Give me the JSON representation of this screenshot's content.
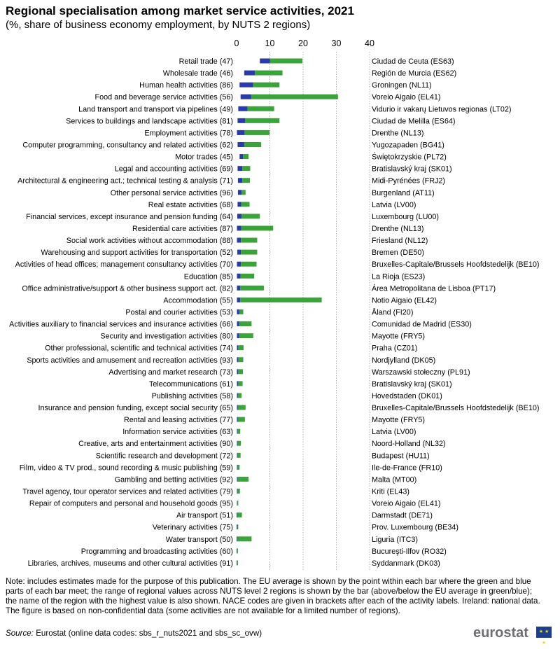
{
  "title": "Regional specialisation among market service activities, 2021",
  "subtitle": "(%, share of business economy employment,  by NUTS 2 regions)",
  "note": "Note: includes estimates made for the purpose of this publication. The EU average is shown by the point within each bar where the green and blue parts of each bar meet; the range of regional values across NUTS level 2 regions is shown by the bar (above/below the EU average in green/blue); the name of the region with the highest value is also shown. NACE codes are given in brackets after each of the activity labels. Ireland: national data. The figure is based on non-confidential data (some activities are not available for a limited number of regions).",
  "source_label": "Source:",
  "source_text": " Eurostat (online data codes: sbs_r_nuts2021 and sbs_sc_ovw)",
  "logo_text": "eurostat",
  "colors": {
    "below_avg": "#2a3aa8",
    "above_avg": "#3aa43a",
    "grid": "#9a9a9a"
  },
  "chart_data": {
    "type": "bar",
    "orientation": "horizontal",
    "xlim": [
      0,
      40
    ],
    "xticks": [
      "0",
      "10",
      "20",
      "30",
      "40"
    ],
    "grid": "vertical dotted",
    "series": [
      {
        "name": "below EU average",
        "color": "#2a3aa8"
      },
      {
        "name": "above EU average",
        "color": "#3aa43a"
      }
    ],
    "rows": [
      {
        "label": "Retail trade (47)",
        "min": 7.0,
        "avg": 10.0,
        "max": 19.8,
        "region": "Ciudad de Ceuta (ES63)"
      },
      {
        "label": "Wholesale trade (46)",
        "min": 2.3,
        "avg": 5.5,
        "max": 13.8,
        "region": "Región de Murcia (ES62)"
      },
      {
        "label": "Human health activities (86)",
        "min": 0.9,
        "avg": 5.0,
        "max": 12.9,
        "region": "Groningen (NL11)"
      },
      {
        "label": "Food and beverage service activities (56)",
        "min": 1.2,
        "avg": 4.4,
        "max": 30.5,
        "region": "Voreio Aigaio (EL41)"
      },
      {
        "label": "Land transport and transport via pipelines (49)",
        "min": 0.5,
        "avg": 3.3,
        "max": 11.3,
        "region": "Vidurio ir vakarų Lietuvos regionas  (LT02)"
      },
      {
        "label": "Services to buildings and landscape activities (81)",
        "min": 0.3,
        "avg": 2.6,
        "max": 12.9,
        "region": "Ciudad de Melilla (ES64)"
      },
      {
        "label": "Employment activities (78)",
        "min": 0.1,
        "avg": 2.4,
        "max": 9.9,
        "region": "Drenthe (NL13)"
      },
      {
        "label": "Computer programming, consultancy and related activities (62)",
        "min": 0.3,
        "avg": 2.3,
        "max": 7.4,
        "region": "Yugozapaden (BG41)"
      },
      {
        "label": "Motor trades (45)",
        "min": 0.9,
        "avg": 1.9,
        "max": 3.6,
        "region": "Świętokrzyskie (PL72)"
      },
      {
        "label": "Legal and accounting activities (69)",
        "min": 0.3,
        "avg": 1.7,
        "max": 4.1,
        "region": "Bratislavský kraj (SK01)"
      },
      {
        "label": "Architectural & engineering act.; technical testing & analysis (71)",
        "min": 0.4,
        "avg": 1.7,
        "max": 4.0,
        "region": "Midi-Pyrénées (FRJ2)"
      },
      {
        "label": "Other personal service activities (96)",
        "min": 0.4,
        "avg": 1.5,
        "max": 2.7,
        "region": "Burgenland (AT11)"
      },
      {
        "label": "Real estate activities (68)",
        "min": 0.3,
        "avg": 1.4,
        "max": 3.9,
        "region": "Latvia (LV00)"
      },
      {
        "label": "Financial services, except insurance and pension funding (64)",
        "min": 0.2,
        "avg": 1.5,
        "max": 7.0,
        "region": "Luxembourg (LU00)"
      },
      {
        "label": "Residential care activities (87)",
        "min": 0.1,
        "avg": 1.4,
        "max": 11.0,
        "region": "Drenthe (NL13)"
      },
      {
        "label": "Social work activities without accommodation (88)",
        "min": 0.1,
        "avg": 1.3,
        "max": 6.2,
        "region": "Friesland (NL12)"
      },
      {
        "label": "Warehousing and support activities for transportation (52)",
        "min": 0.2,
        "avg": 1.3,
        "max": 6.2,
        "region": "Bremen (DE50)"
      },
      {
        "label": "Activities of head offices; management consultancy activities (70)",
        "min": 0.1,
        "avg": 1.3,
        "max": 6.0,
        "region": "Bruxelles-Capitale/Brussels Hoofdstedelijk  (BE10)"
      },
      {
        "label": "Education (85)",
        "min": 0.1,
        "avg": 1.2,
        "max": 5.3,
        "region": "La Rioja (ES23)"
      },
      {
        "label": "Office administrative/support & other business support act. (82)",
        "min": 0.1,
        "avg": 1.1,
        "max": 8.2,
        "region": "Área Metropolitana de Lisboa (PT17)"
      },
      {
        "label": "Accommodation (55)",
        "min": 0.1,
        "avg": 1.1,
        "max": 25.6,
        "region": "Notio Aigaio (EL42)"
      },
      {
        "label": "Postal and courier activities (53)",
        "min": 0.1,
        "avg": 0.9,
        "max": 2.0,
        "region": "Åland (FI20)"
      },
      {
        "label": "Activities auxiliary to financial services and insurance activities (66)",
        "min": 0.1,
        "avg": 0.8,
        "max": 4.5,
        "region": "Comunidad de Madrid (ES30)"
      },
      {
        "label": "Security and investigation activities (80)",
        "min": 0.1,
        "avg": 0.8,
        "max": 5.0,
        "region": "Mayotte (FRY5)"
      },
      {
        "label": "Other professional, scientific and technical activities (74)",
        "min": 0.1,
        "avg": 0.5,
        "max": 2.1,
        "region": "Praha (CZ01)"
      },
      {
        "label": "Sports activities and amusement and recreation activities (93)",
        "min": 0.1,
        "avg": 0.5,
        "max": 2.0,
        "region": "Nordjylland (DK05)"
      },
      {
        "label": "Advertising and market research (73)",
        "min": 0.1,
        "avg": 0.5,
        "max": 1.9,
        "region": "Warszawski stołeczny (PL91)"
      },
      {
        "label": "Telecommunications (61)",
        "min": 0.1,
        "avg": 0.5,
        "max": 1.8,
        "region": "Bratislavský kraj (SK01)"
      },
      {
        "label": "Publishing activities (58)",
        "min": 0.1,
        "avg": 0.4,
        "max": 1.5,
        "region": "Hovedstaden (DK01)"
      },
      {
        "label": "Insurance and pension funding, except social security (65)",
        "min": 0.1,
        "avg": 0.4,
        "max": 2.7,
        "region": "Bruxelles-Capitale/Brussels Hoofdstedelijk  (BE10)"
      },
      {
        "label": "Rental and leasing activities (77)",
        "min": 0.1,
        "avg": 0.4,
        "max": 2.5,
        "region": "Mayotte (FRY5)"
      },
      {
        "label": "Information service activities (63)",
        "min": 0.1,
        "avg": 0.3,
        "max": 1.1,
        "region": "Latvia (LV00)"
      },
      {
        "label": "Creative, arts and entertainment activities (90)",
        "min": 0.1,
        "avg": 0.3,
        "max": 1.3,
        "region": "Noord-Holland (NL32)"
      },
      {
        "label": "Scientific research and development (72)",
        "min": 0.1,
        "avg": 0.3,
        "max": 1.2,
        "region": "Budapest (HU11)"
      },
      {
        "label": "Film, video & TV prod., sound recording & music publishing (59)",
        "min": 0.1,
        "avg": 0.3,
        "max": 0.9,
        "region": "Ile-de-France (FR10)"
      },
      {
        "label": "Gambling and betting activities (92)",
        "min": 0.1,
        "avg": 0.3,
        "max": 3.6,
        "region": "Malta (MT00)"
      },
      {
        "label": "Travel agency, tour operator services and related activities (79)",
        "min": 0.1,
        "avg": 0.3,
        "max": 1.0,
        "region": "Kriti (EL43)"
      },
      {
        "label": "Repair of computers and personal and household goods (95)",
        "min": 0.1,
        "avg": 0.2,
        "max": 0.5,
        "region": "Voreio Aigaio (EL41)"
      },
      {
        "label": "Air transport (51)",
        "min": 0.0,
        "avg": 0.2,
        "max": 1.6,
        "region": "Darmstadt (DE71)"
      },
      {
        "label": "Veterinary activities (75)",
        "min": 0.0,
        "avg": 0.2,
        "max": 0.5,
        "region": "Prov. Luxembourg (BE34)"
      },
      {
        "label": "Water transport (50)",
        "min": 0.0,
        "avg": 0.2,
        "max": 4.5,
        "region": "Liguria (ITC3)"
      },
      {
        "label": "Programming and broadcasting activities (60)",
        "min": 0.0,
        "avg": 0.1,
        "max": 0.4,
        "region": "Bucureşti-Ilfov (RO32)"
      },
      {
        "label": "Libraries, archives, museums and other cultural activities (91)",
        "min": 0.0,
        "avg": 0.1,
        "max": 0.4,
        "region": "Syddanmark (DK03)"
      }
    ]
  }
}
